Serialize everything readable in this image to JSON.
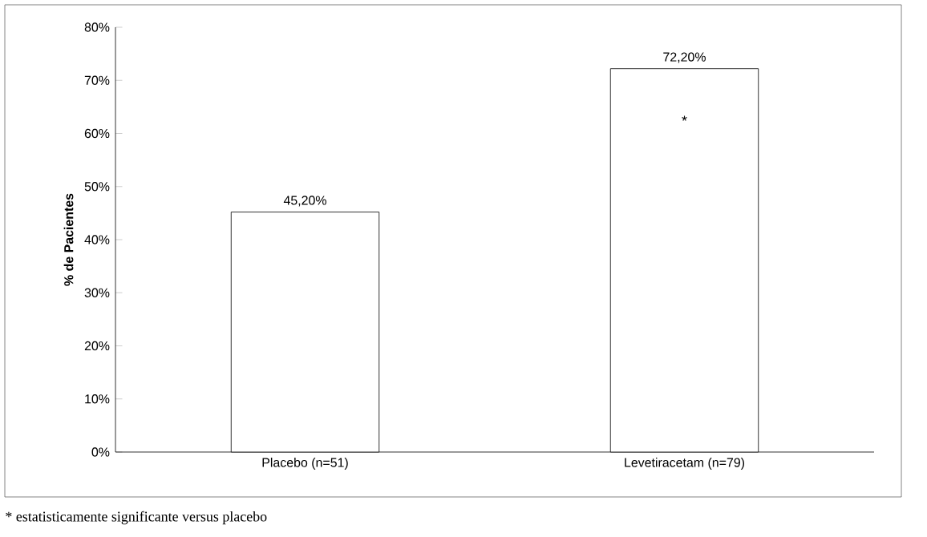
{
  "chart_data": {
    "type": "bar",
    "ylabel": "% de Pacientes",
    "categories": [
      "Placebo (n=51)",
      "Levetiracetam (n=79)"
    ],
    "values": [
      45.2,
      72.2
    ],
    "value_labels": [
      "45,20%",
      "72,20%"
    ],
    "color": "#ffffff",
    "ylim": [
      0,
      80
    ],
    "yticks": [
      {
        "value": 0,
        "label": "0%"
      },
      {
        "value": 10,
        "label": "10%"
      },
      {
        "value": 20,
        "label": "20%"
      },
      {
        "value": 30,
        "label": "30%"
      },
      {
        "value": 40,
        "label": "40%"
      },
      {
        "value": 50,
        "label": "50%"
      },
      {
        "value": 60,
        "label": "60%"
      },
      {
        "value": 70,
        "label": "70%"
      },
      {
        "value": 80,
        "label": "80%"
      }
    ],
    "annotations": [
      "*",
      "* estatisticamente significante versus placebo"
    ]
  }
}
